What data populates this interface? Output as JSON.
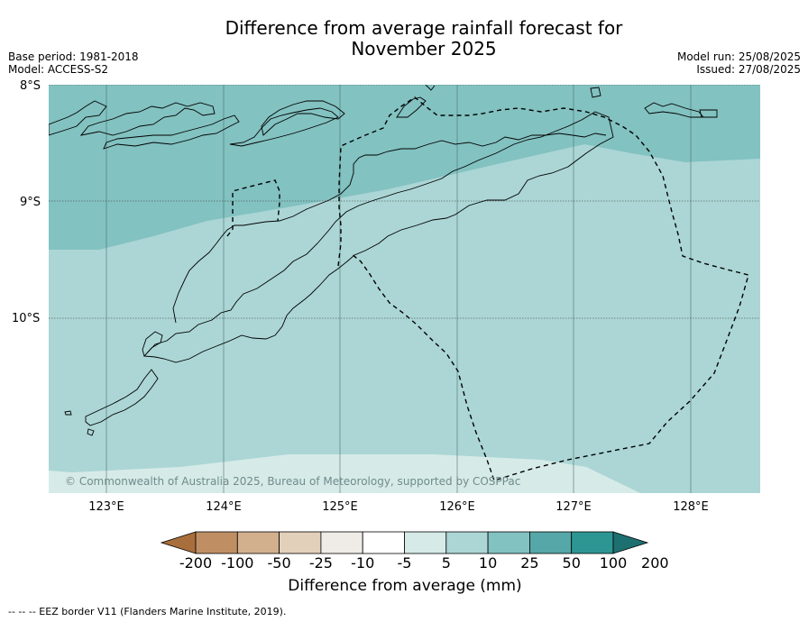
{
  "title_line1": "Difference from average rainfall forecast for",
  "title_line2": "November 2025",
  "base_period": "Base period: 1981-2018",
  "model": "Model: ACCESS-S2",
  "model_run": "Model run: 25/08/2025",
  "issued": "Issued: 27/08/2025",
  "lat_labels": [
    "8°S",
    "9°S",
    "10°S"
  ],
  "lon_labels": [
    "123°E",
    "124°E",
    "125°E",
    "126°E",
    "127°E",
    "128°E"
  ],
  "copyright": "© Commonwealth of Australia 2025, Bureau of Meteorology, supported by COSPPac",
  "colorbar": {
    "ticks": [
      "-200",
      "-100",
      "-50",
      "-25",
      "-10",
      "-5",
      "5",
      "10",
      "25",
      "50",
      "100",
      "200"
    ],
    "colors": [
      "#a86f3c",
      "#bf8f63",
      "#d2b08e",
      "#e3d0bb",
      "#efebe6",
      "#ffffff",
      "#d6ebe8",
      "#abd6d5",
      "#82c2c1",
      "#56a7a7",
      "#2d9693",
      "#1e7070"
    ],
    "label": "Difference from average (mm)"
  },
  "footnote": "--  --  -- EEZ border V11 (Flanders Marine Institute, 2019).",
  "field_colors": {
    "above_25": "#82c2c1",
    "range_10_25": "#abd6d5",
    "range_5_10": "#d6ebe8"
  }
}
